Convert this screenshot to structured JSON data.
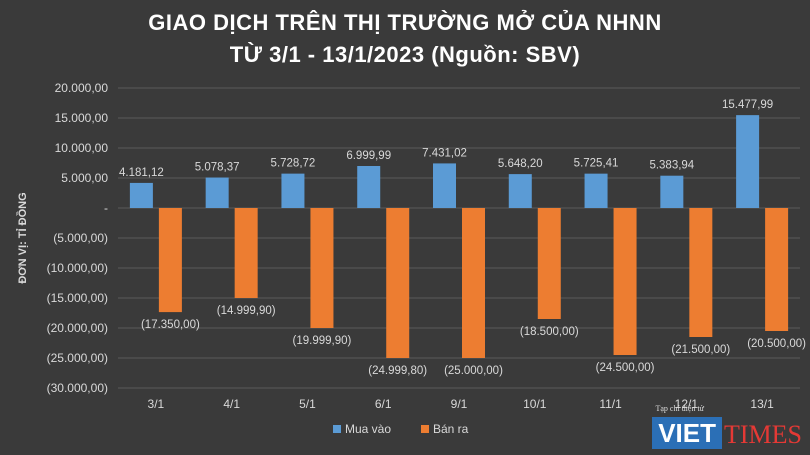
{
  "chart_data": {
    "type": "bar",
    "title": "GIAO DỊCH TRÊN THỊ TRƯỜNG MỞ CỦA NHNN",
    "subtitle": "TỪ 3/1 - 13/1/2023 (Nguồn: SBV)",
    "ylabel": "ĐƠN VỊ: TỈ ĐỒNG",
    "xlabel": "",
    "categories": [
      "3/1",
      "4/1",
      "5/1",
      "6/1",
      "9/1",
      "10/1",
      "11/1",
      "12/1",
      "13/1"
    ],
    "series": [
      {
        "name": "Mua vào",
        "color": "#5b9bd5",
        "values": [
          4181.12,
          5078.37,
          5728.72,
          6999.99,
          7431.02,
          5648.2,
          5725.41,
          5383.94,
          15477.99
        ],
        "labels": [
          "4.181,12",
          "5.078,37",
          "5.728,72",
          "6.999,99",
          "7.431,02",
          "5.648,20",
          "5.725,41",
          "5.383,94",
          "15.477,99"
        ]
      },
      {
        "name": "Bán ra",
        "color": "#ed7d31",
        "values": [
          -17350.0,
          -14999.9,
          -19999.9,
          -24999.8,
          -25000.0,
          -18500.0,
          -24500.0,
          -21500.0,
          -20500.0
        ],
        "labels": [
          "(17.350,00)",
          "(14.999,90)",
          "(19.999,90)",
          "(24.999,80)",
          "(25.000,00)",
          "(18.500,00)",
          "(24.500,00)",
          "(21.500,00)",
          "(20.500,00)"
        ]
      }
    ],
    "ylim": [
      -30000,
      20000
    ],
    "yticks": [
      20000,
      15000,
      10000,
      5000,
      0,
      -5000,
      -10000,
      -15000,
      -20000,
      -25000,
      -30000
    ],
    "ytick_labels": [
      "20.000,00",
      "15.000,00",
      "10.000,00",
      "5.000,00",
      "-",
      "(5.000,00)",
      "(10.000,00)",
      "(15.000,00)",
      "(20.000,00)",
      "(25.000,00)",
      "(30.000,00)"
    ],
    "grid": true,
    "legend": "bottom"
  },
  "watermark": {
    "small_text": "Tạp chí điện tử",
    "brand_left": "VIET",
    "brand_right": "TIMES"
  }
}
